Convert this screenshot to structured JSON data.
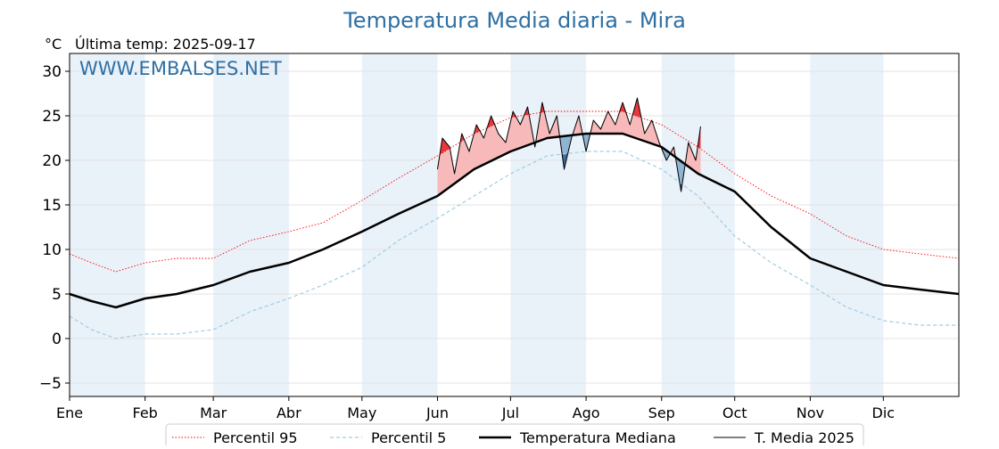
{
  "chart_data": {
    "type": "line",
    "title": "Temperatura Media diaria - Mira",
    "unit_label": "°C",
    "last_temp_label": "Última temp: 2025-09-17",
    "watermark": "WWW.EMBALSES.NET",
    "ylim": [
      -6.5,
      32
    ],
    "yticks": [
      -5,
      0,
      5,
      10,
      15,
      20,
      25,
      30
    ],
    "ytick_labels": [
      "−5",
      "0",
      "5",
      "10",
      "15",
      "20",
      "25",
      "30"
    ],
    "xlim_days": [
      1,
      366
    ],
    "months": [
      {
        "label": "Ene",
        "start": 1
      },
      {
        "label": "Feb",
        "start": 32
      },
      {
        "label": "Mar",
        "start": 60
      },
      {
        "label": "Abr",
        "start": 91
      },
      {
        "label": "May",
        "start": 121
      },
      {
        "label": "Jun",
        "start": 152
      },
      {
        "label": "Jul",
        "start": 182
      },
      {
        "label": "Ago",
        "start": 213
      },
      {
        "label": "Sep",
        "start": 244
      },
      {
        "label": "Oct",
        "start": 274
      },
      {
        "label": "Nov",
        "start": 305
      },
      {
        "label": "Dic",
        "start": 335
      }
    ],
    "x_unit": "day_of_year",
    "series": [
      {
        "name": "Percentil 95",
        "key": "p95",
        "color": "#ff0000",
        "style": "dotted",
        "days": [
          1,
          10,
          20,
          32,
          45,
          60,
          75,
          91,
          105,
          121,
          136,
          152,
          167,
          182,
          197,
          213,
          228,
          244,
          259,
          274,
          289,
          305,
          320,
          335,
          350,
          366
        ],
        "values": [
          9.5,
          8.5,
          7.5,
          8.5,
          9.0,
          9.0,
          11.0,
          12.0,
          13.0,
          15.5,
          18.0,
          20.5,
          23.0,
          24.8,
          25.5,
          25.5,
          25.5,
          24.0,
          21.5,
          18.5,
          16.0,
          14.0,
          11.5,
          10.0,
          9.5,
          9.0
        ]
      },
      {
        "name": "Percentil 5",
        "key": "p5",
        "color": "#9fcde0",
        "style": "dashed",
        "days": [
          1,
          10,
          20,
          32,
          45,
          60,
          75,
          91,
          105,
          121,
          136,
          152,
          167,
          182,
          197,
          213,
          228,
          244,
          259,
          274,
          289,
          305,
          320,
          335,
          350,
          366
        ],
        "values": [
          2.5,
          1.0,
          0.0,
          0.5,
          0.5,
          1.0,
          3.0,
          4.5,
          6.0,
          8.0,
          11.0,
          13.5,
          16.0,
          18.5,
          20.5,
          21.0,
          21.0,
          19.0,
          16.0,
          11.5,
          8.5,
          6.0,
          3.5,
          2.0,
          1.5,
          1.5
        ]
      },
      {
        "name": "Temperatura Mediana",
        "key": "median",
        "color": "#000000",
        "style": "solid-thick",
        "days": [
          1,
          10,
          20,
          32,
          45,
          60,
          75,
          91,
          105,
          121,
          136,
          152,
          167,
          182,
          197,
          213,
          228,
          244,
          259,
          274,
          289,
          305,
          320,
          335,
          350,
          366
        ],
        "values": [
          5.0,
          4.2,
          3.5,
          4.5,
          5.0,
          6.0,
          7.5,
          8.5,
          10.0,
          12.0,
          14.0,
          16.0,
          19.0,
          21.0,
          22.5,
          23.0,
          23.0,
          21.5,
          18.5,
          16.5,
          12.5,
          9.0,
          7.5,
          6.0,
          5.5,
          5.0
        ]
      },
      {
        "name": "T. Media 2025",
        "key": "current",
        "color": "#000000",
        "style": "solid-thin",
        "days": [
          152,
          154,
          157,
          159,
          162,
          165,
          168,
          171,
          174,
          177,
          180,
          183,
          186,
          189,
          192,
          195,
          198,
          201,
          204,
          207,
          210,
          213,
          216,
          219,
          222,
          225,
          228,
          231,
          234,
          237,
          240,
          243,
          246,
          249,
          252,
          255,
          258,
          260
        ],
        "values": [
          19.0,
          22.5,
          21.5,
          18.5,
          23.0,
          21.0,
          24.0,
          22.5,
          25.0,
          23.0,
          22.0,
          25.5,
          24.0,
          26.0,
          21.5,
          26.5,
          23.0,
          25.0,
          19.0,
          22.5,
          25.0,
          21.0,
          24.5,
          23.5,
          25.5,
          24.0,
          26.5,
          24.0,
          27.0,
          23.0,
          24.5,
          22.0,
          20.0,
          21.5,
          16.5,
          22.0,
          20.0,
          23.8
        ]
      }
    ],
    "shading": {
      "above_p95": "#e8383d",
      "median_to_p95": "#f7b9b9",
      "below_p5": "#3f6ea3",
      "p5_to_median": "#8eb4d4"
    },
    "alt_month_band_color": "#e9f1f9",
    "grid": true,
    "legend_position": "bottom-center"
  }
}
